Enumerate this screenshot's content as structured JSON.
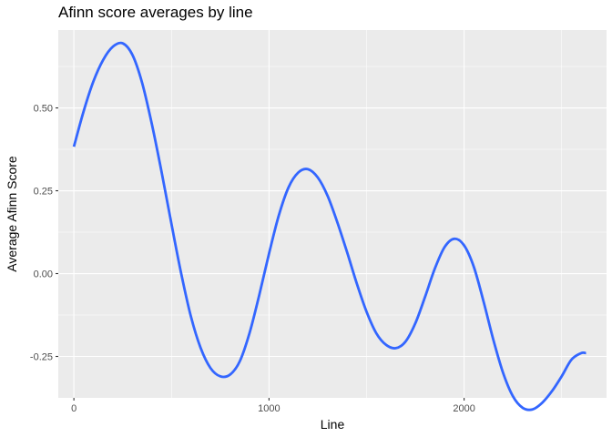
{
  "chart_data": {
    "type": "line",
    "title": "Afinn score averages by line",
    "xlabel": "Line",
    "ylabel": "Average Afinn Score",
    "xlim": [
      -80,
      2730
    ],
    "ylim": [
      -0.375,
      0.735
    ],
    "x_ticks": [
      0,
      1000,
      2000
    ],
    "x_tick_labels": [
      "0",
      "1000",
      "2000"
    ],
    "y_ticks": [
      -0.25,
      0.0,
      0.25,
      0.5
    ],
    "y_tick_labels": [
      "-0.25",
      "0.00",
      "0.25",
      "0.50"
    ],
    "grid": true,
    "background": "#ebebeb",
    "grid_color": "#ffffff",
    "line_color": "#3366ff",
    "series": [
      {
        "x": [
          0,
          50,
          100,
          150,
          200,
          250,
          300,
          350,
          400,
          450,
          500,
          550,
          600,
          650,
          700,
          750,
          800,
          850,
          900,
          950,
          1000,
          1050,
          1100,
          1150,
          1200,
          1250,
          1300,
          1350,
          1400,
          1450,
          1500,
          1550,
          1600,
          1650,
          1700,
          1750,
          1800,
          1850,
          1900,
          1950,
          2000,
          2050,
          2100,
          2150,
          2200,
          2250,
          2300,
          2350,
          2400,
          2450,
          2500,
          2550,
          2600,
          2625
        ],
        "y": [
          0.383,
          0.49,
          0.58,
          0.645,
          0.685,
          0.695,
          0.66,
          0.575,
          0.45,
          0.305,
          0.15,
          0.0,
          -0.13,
          -0.225,
          -0.285,
          -0.31,
          -0.305,
          -0.265,
          -0.18,
          -0.065,
          0.06,
          0.175,
          0.26,
          0.305,
          0.315,
          0.29,
          0.235,
          0.155,
          0.065,
          -0.03,
          -0.115,
          -0.18,
          -0.215,
          -0.225,
          -0.205,
          -0.15,
          -0.07,
          0.015,
          0.08,
          0.105,
          0.085,
          0.02,
          -0.085,
          -0.2,
          -0.3,
          -0.37,
          -0.405,
          -0.41,
          -0.39,
          -0.355,
          -0.31,
          -0.26,
          -0.24,
          -0.24
        ]
      }
    ]
  }
}
